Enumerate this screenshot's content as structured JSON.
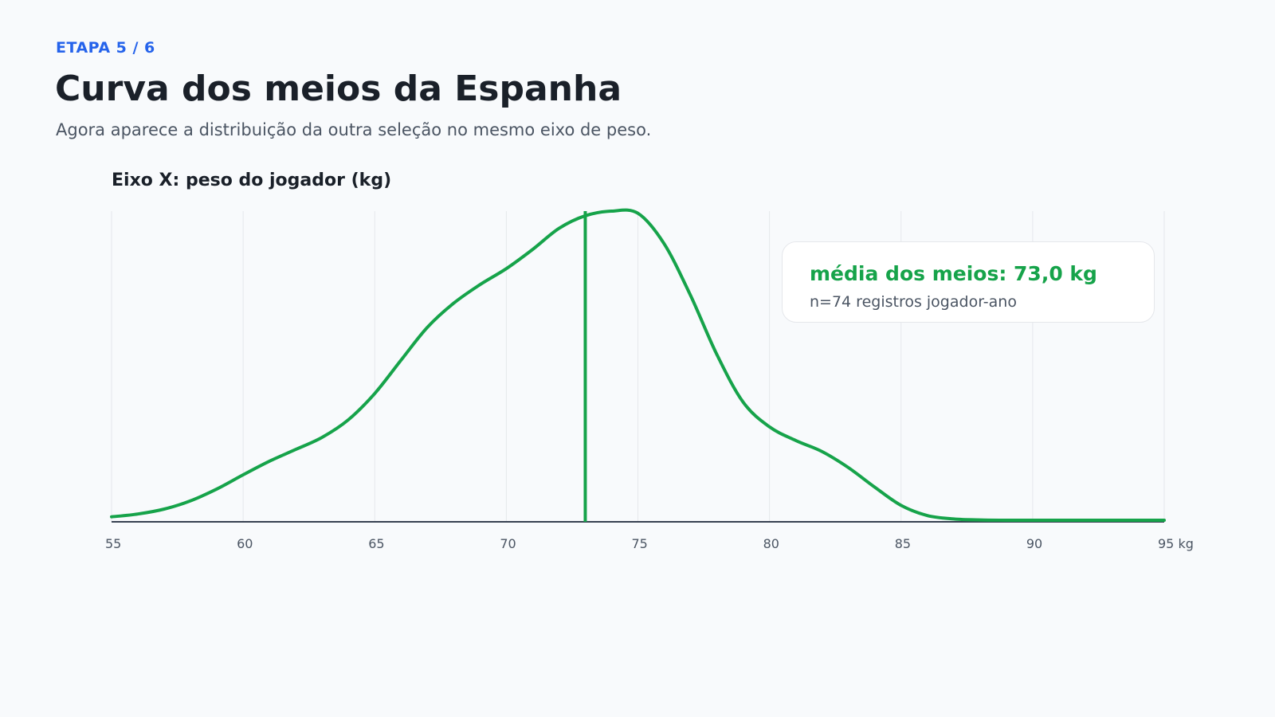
{
  "header": {
    "step": "ETAPA 5 / 6",
    "title": "Curva dos meios da Espanha",
    "subtitle": "Agora aparece a distribuição da outra seleção no mesmo eixo de peso."
  },
  "chart_data": {
    "type": "area",
    "x_axis_caption": "Eixo X: peso do jogador (kg)",
    "xlim": [
      55,
      95
    ],
    "x_ticks": [
      55,
      60,
      65,
      70,
      75,
      80,
      85,
      90,
      95
    ],
    "x_unit": "kg",
    "grid": true,
    "series": [
      {
        "color": "#16a34a",
        "x": [
          55,
          56,
          57,
          58,
          59,
          60,
          61,
          62,
          63,
          64,
          65,
          66,
          67,
          68,
          69,
          70,
          71,
          72,
          73,
          74,
          75,
          76,
          77,
          78,
          79,
          80,
          81,
          82,
          83,
          84,
          85,
          86,
          87,
          88,
          89,
          90,
          91,
          92,
          93,
          94,
          95
        ],
        "y": [
          0.011,
          0.02,
          0.036,
          0.063,
          0.101,
          0.147,
          0.191,
          0.229,
          0.268,
          0.325,
          0.41,
          0.518,
          0.624,
          0.702,
          0.762,
          0.814,
          0.876,
          0.944,
          0.985,
          1.0,
          0.993,
          0.894,
          0.727,
          0.536,
          0.382,
          0.302,
          0.258,
          0.222,
          0.17,
          0.107,
          0.048,
          0.015,
          0.004,
          0.001,
          0.0,
          0.0,
          0.0,
          0.0,
          0.0,
          0.0,
          0.0
        ]
      }
    ],
    "mean_line": {
      "value": 73.0,
      "color": "#16a34a"
    },
    "annotation": {
      "title": "média dos meios: 73,0 kg",
      "detail": "n=74 registros jogador-ano"
    }
  }
}
